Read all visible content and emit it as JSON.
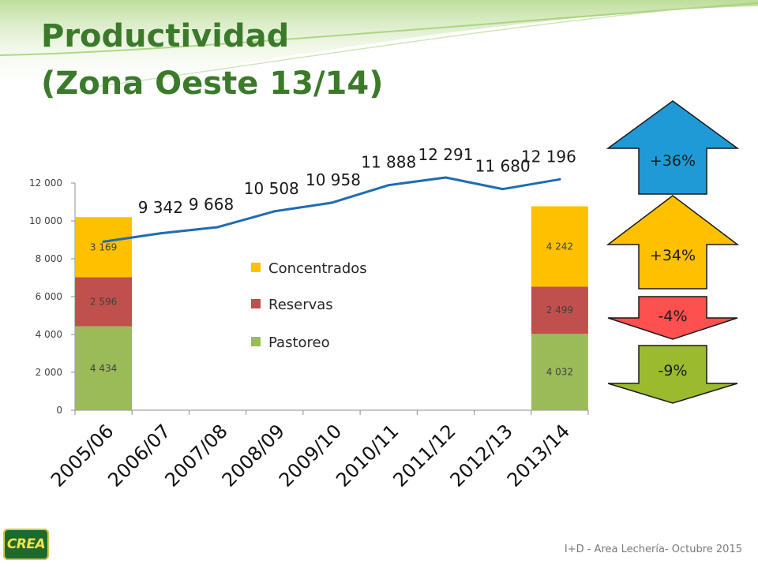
{
  "slide": {
    "title_line1": "Productividad",
    "title_line2": "(Zona Oeste 13/14)",
    "footer": "I+D - Area Lechería- Octubre 2015",
    "logo_text": "CREA"
  },
  "colors": {
    "title": "#3b7a2b",
    "pastoreo": "#9bbb59",
    "reservas": "#c0504d",
    "concentrados": "#ffc000",
    "line": "#1f6cb4",
    "arrow_blue": "#1f9ad6",
    "arrow_yellow": "#ffc000",
    "arrow_red": "#ff5050",
    "arrow_green": "#9bbb2e"
  },
  "chart_data": {
    "type": "bar",
    "categories": [
      "2005/06",
      "2006/07",
      "2007/08",
      "2008/09",
      "2009/10",
      "2010/11",
      "2011/12",
      "2012/13",
      "2013/14"
    ],
    "ylim": [
      0,
      12000
    ],
    "yticks": [
      0,
      2000,
      4000,
      6000,
      8000,
      10000,
      12000
    ],
    "ytick_labels": [
      "0",
      "2 000",
      "4 000",
      "6 000",
      "8 000",
      "10 000",
      "12 000"
    ],
    "grid": false,
    "legend_position": "center",
    "stacked_bars": [
      {
        "category": "2005/06",
        "segments": [
          {
            "name": "Pastoreo",
            "value": 4434,
            "label": "4 434"
          },
          {
            "name": "Reservas",
            "value": 2596,
            "label": "2 596"
          },
          {
            "name": "Concentrados",
            "value": 3169,
            "label": "3 169"
          }
        ]
      },
      {
        "category": "2013/14",
        "segments": [
          {
            "name": "Pastoreo",
            "value": 4032,
            "label": "4 032"
          },
          {
            "name": "Reservas",
            "value": 2499,
            "label": "2 499"
          },
          {
            "name": "Concentrados",
            "value": 4242,
            "label": "4 242"
          }
        ]
      }
    ],
    "line_series": {
      "x": [
        "2005/06",
        "2006/07",
        "2007/08",
        "2008/09",
        "2009/10",
        "2010/11",
        "2011/12",
        "2012/13",
        "2013/14"
      ],
      "values": [
        8900,
        9342,
        9668,
        10508,
        10958,
        11888,
        12291,
        11680,
        12196
      ],
      "labels": [
        "",
        "9 342",
        "9 668",
        "10 508",
        "10 958",
        "11 888",
        "12 291",
        "11 680",
        "12 196"
      ]
    },
    "legend": [
      "Concentrados",
      "Reservas",
      "Pastoreo"
    ],
    "change_arrows": [
      {
        "label": "+36%",
        "direction": "up",
        "color": "#1f9ad6"
      },
      {
        "label": "+34%",
        "direction": "up",
        "color": "#ffc000"
      },
      {
        "label": "-4%",
        "direction": "down",
        "color": "#ff5050"
      },
      {
        "label": "-9%",
        "direction": "down",
        "color": "#9bbb2e"
      }
    ]
  }
}
